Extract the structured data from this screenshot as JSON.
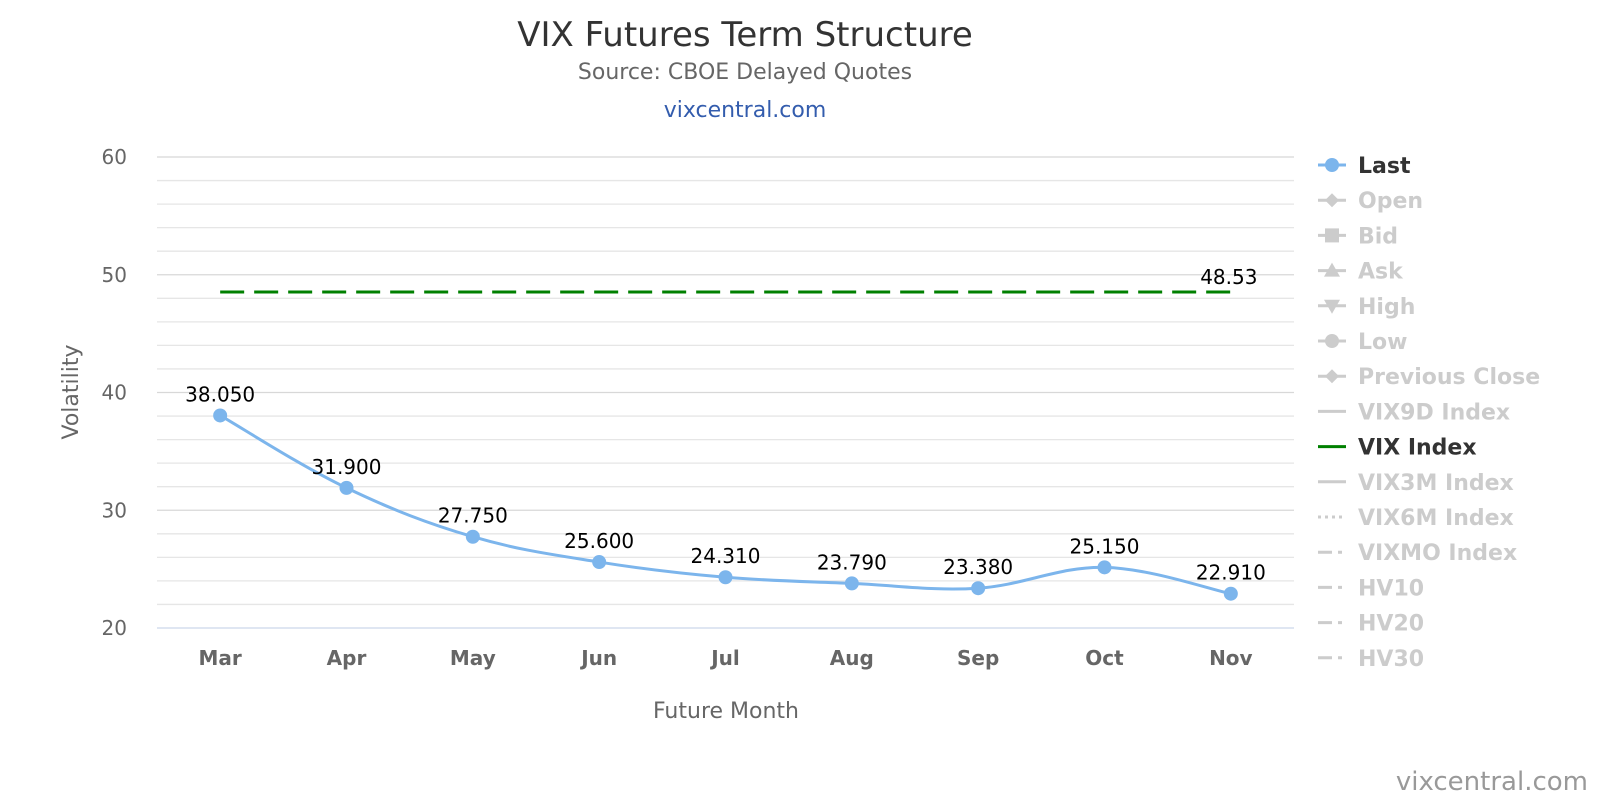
{
  "chart_data": {
    "type": "line",
    "title": "VIX Futures Term Structure",
    "subtitle": "Source: CBOE Delayed Quotes",
    "site_link": "vixcentral.com",
    "credit": "vixcentral.com",
    "xlabel": "Future Month",
    "ylabel": "Volatility",
    "categories": [
      "Mar",
      "Apr",
      "May",
      "Jun",
      "Jul",
      "Aug",
      "Sep",
      "Oct",
      "Nov"
    ],
    "ylim": [
      20,
      60
    ],
    "y_ticks": [
      20,
      30,
      40,
      50,
      60
    ],
    "grid": true,
    "legend_position": "right",
    "series": [
      {
        "name": "Last",
        "color": "#7cb5ec",
        "values": [
          38.05,
          31.9,
          27.75,
          25.6,
          24.31,
          23.79,
          23.38,
          25.15,
          22.91
        ],
        "labels": [
          "38.050",
          "31.900",
          "27.750",
          "25.600",
          "24.310",
          "23.790",
          "23.380",
          "25.150",
          "22.910"
        ]
      },
      {
        "name": "VIX Index",
        "color": "#008000",
        "value": 48.53,
        "label": "48.53"
      }
    ],
    "legend": [
      {
        "name": "Last",
        "symbol": "circle",
        "active": true,
        "color": "#7cb5ec"
      },
      {
        "name": "Open",
        "symbol": "diamond",
        "active": false
      },
      {
        "name": "Bid",
        "symbol": "square",
        "active": false
      },
      {
        "name": "Ask",
        "symbol": "triangle",
        "active": false
      },
      {
        "name": "High",
        "symbol": "triangle-down",
        "active": false
      },
      {
        "name": "Low",
        "symbol": "circle",
        "active": false
      },
      {
        "name": "Previous Close",
        "symbol": "diamond",
        "active": false
      },
      {
        "name": "VIX9D Index",
        "symbol": "line",
        "active": false
      },
      {
        "name": "VIX Index",
        "symbol": "line",
        "active": true,
        "color": "#008000"
      },
      {
        "name": "VIX3M Index",
        "symbol": "line",
        "active": false
      },
      {
        "name": "VIX6M Index",
        "symbol": "dot-line",
        "active": false
      },
      {
        "name": "VIXMO Index",
        "symbol": "dash-line",
        "active": false
      },
      {
        "name": "HV10",
        "symbol": "dash-line",
        "active": false
      },
      {
        "name": "HV20",
        "symbol": "dash-line",
        "active": false
      },
      {
        "name": "HV30",
        "symbol": "dash-line",
        "active": false
      }
    ],
    "colors": {
      "inactive": "#cccccc",
      "active_text": "#333333",
      "grid": "#e6e6e6"
    }
  }
}
